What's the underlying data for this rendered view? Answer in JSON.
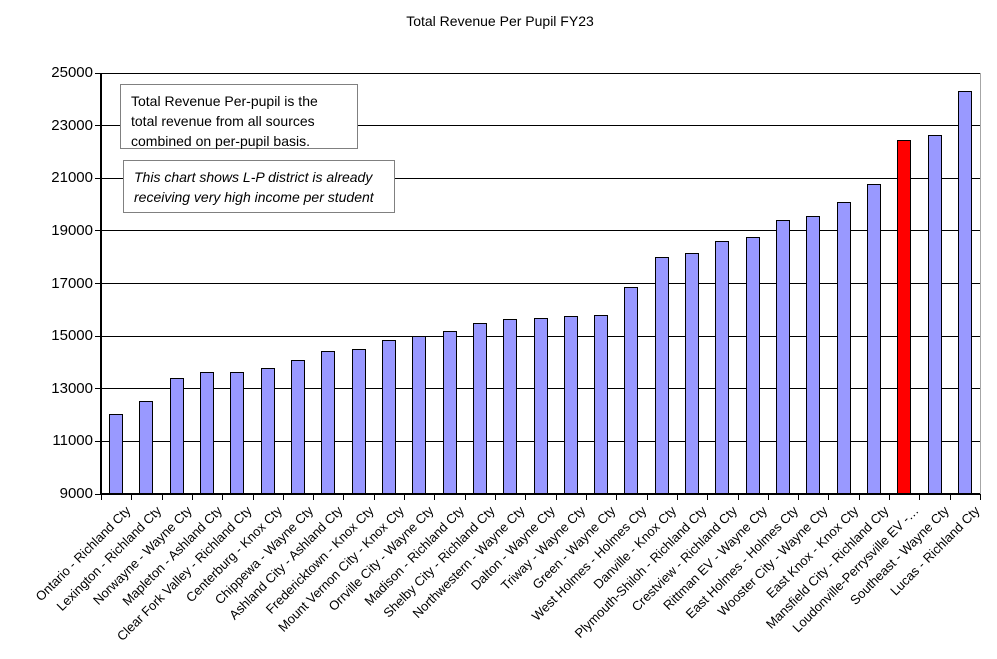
{
  "title": "Total Revenue Per Pupil FY23",
  "annotations": {
    "box1": "Total Revenue Per-pupil is the total revenue from all sources combined on per-pupil basis.",
    "box2": "This chart shows L-P district is already receiving very high income per student"
  },
  "colors": {
    "bar_default": "#9999FF",
    "bar_highlight": "#FF0000",
    "bar_border": "#000000",
    "gridline": "#000000",
    "plot_right_border": "#A6A6A6"
  },
  "chart_data": {
    "type": "bar",
    "title": "Total Revenue Per Pupil FY23",
    "xlabel": "",
    "ylabel": "",
    "ylim": [
      9000,
      25000
    ],
    "yticks": [
      9000,
      11000,
      13000,
      15000,
      17000,
      19000,
      21000,
      23000,
      25000
    ],
    "grid": true,
    "legend": "none",
    "highlight_index": 26,
    "categories": [
      "Ontario - Richland Cty",
      "Lexington - Richland Cty",
      "Norwayne - Wayne Cty",
      "Mapleton - Ashland Cty",
      "Clear Fork Valley - Richland Cty",
      "Centerburg - Knox Cty",
      "Chippewa - Wayne Cty",
      "Ashland City - Ashland Cty",
      "Fredericktown - Knox Cty",
      "Mount Vernon City - Knox Cty",
      "Orrville City - Wayne Cty",
      "Madison - Richland Cty",
      "Shelby City - Richland Cty",
      "Northwestern - Wayne Cty",
      "Dalton - Wayne Cty",
      "Triway - Wayne Cty",
      "Green - Wayne Cty",
      "West Holmes - Holmes Cty",
      "Danville - Knox Cty",
      "Plymouth-Shiloh - Richland Cty",
      "Crestview - Richland Cty",
      "Rittman EV - Wayne Cty",
      "East Holmes - Holmes Cty",
      "Wooster City - Wayne Cty",
      "East Knox - Knox Cty",
      "Mansfield City - Richland Cty",
      "Loudonville-Perrysville EV -…",
      "Southeast - Wayne Cty",
      "Lucas - Richland Cty"
    ],
    "values": [
      12050,
      12550,
      13400,
      13650,
      13650,
      13800,
      14100,
      14450,
      14500,
      14850,
      15000,
      15200,
      15500,
      15650,
      15700,
      15750,
      15800,
      16850,
      18000,
      18150,
      18600,
      18750,
      19400,
      19550,
      20100,
      20800,
      22450,
      22650,
      24300
    ]
  }
}
